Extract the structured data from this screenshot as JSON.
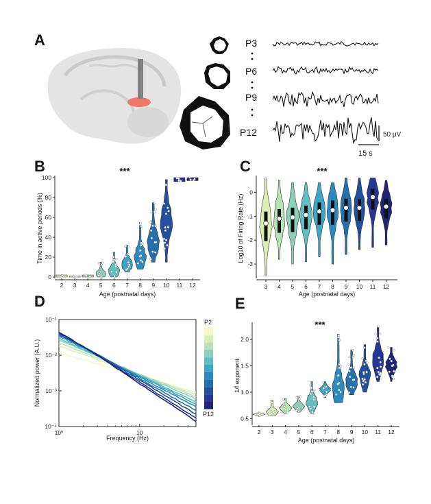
{
  "panels": {
    "a": "A",
    "b": "B",
    "c": "C",
    "d": "D",
    "e": "E"
  },
  "panel_a": {
    "trace_labels": [
      "P3",
      "P6",
      "P9",
      "P12"
    ],
    "scale_v": "50 μV",
    "scale_t": "15 s"
  },
  "colors": [
    "#f4f9c4",
    "#d9efb3",
    "#b7e2b4",
    "#8bd0ba",
    "#5fbfc1",
    "#3ea6c2",
    "#2a8abd",
    "#2470ae",
    "#23509d",
    "#253694",
    "#1d2675"
  ],
  "chart_data": [
    {
      "id": "B",
      "type": "violin",
      "xlabel": "Age (postnatal days)",
      "ylabel": "Time in active periods (%)",
      "significance": "***",
      "categories": [
        "2",
        "3",
        "4",
        "5",
        "6",
        "7",
        "8",
        "9",
        "10",
        "11",
        "12"
      ],
      "ylim": [
        0,
        100
      ],
      "yticks": [
        0,
        20,
        40,
        60,
        80,
        100
      ],
      "medians": [
        1,
        1,
        1,
        3,
        6,
        13,
        20,
        35,
        55,
        98,
        98
      ],
      "ranges": [
        [
          0,
          2
        ],
        [
          0,
          1
        ],
        [
          0,
          2
        ],
        [
          0,
          15
        ],
        [
          0,
          25
        ],
        [
          5,
          32
        ],
        [
          8,
          55
        ],
        [
          15,
          75
        ],
        [
          15,
          98
        ],
        [
          96,
          100
        ],
        [
          97,
          100
        ]
      ]
    },
    {
      "id": "C",
      "type": "violin",
      "xlabel": "Age (postnatal days)",
      "ylabel": "Log10 of Firing Rate (Hz)",
      "significance": "***",
      "categories": [
        "3",
        "4",
        "5",
        "6",
        "7",
        "8",
        "9",
        "10",
        "11",
        "12"
      ],
      "ylim": [
        -3.6,
        0.7
      ],
      "yticks": [
        -3,
        -2,
        -1,
        0
      ],
      "medians": [
        -1.3,
        -1.1,
        -1.05,
        -0.95,
        -0.8,
        -0.75,
        -0.65,
        -0.65,
        -0.2,
        -0.6
      ],
      "ranges": [
        [
          -3.5,
          0.6
        ],
        [
          -2.8,
          0.5
        ],
        [
          -3.0,
          0.4
        ],
        [
          -2.9,
          0.4
        ],
        [
          -2.7,
          0.4
        ],
        [
          -3.0,
          0.4
        ],
        [
          -2.6,
          0.6
        ],
        [
          -2.4,
          0.6
        ],
        [
          -2.3,
          0.6
        ],
        [
          -2.2,
          0.5
        ]
      ]
    },
    {
      "id": "D",
      "type": "line",
      "xlabel": "Frequency (Hz)",
      "ylabel": "Normalized power (A.U.)",
      "xscale": "log",
      "yscale": "log",
      "xlim": [
        1,
        50
      ],
      "ylim": [
        0.0001,
        0.1
      ],
      "xtick_labels": [
        "10⁰",
        "10"
      ],
      "ytick_labels": [
        "10⁻¹",
        "10⁻²",
        "10⁻³",
        "10⁻⁴"
      ],
      "colorbar_labels": [
        "P2",
        "P12"
      ],
      "series": [
        {
          "values": [
            0.012,
            0.0009
          ]
        },
        {
          "values": [
            0.018,
            0.0008
          ]
        },
        {
          "values": [
            0.022,
            0.0007
          ]
        },
        {
          "values": [
            0.027,
            0.0006
          ]
        },
        {
          "values": [
            0.03,
            0.0005
          ]
        },
        {
          "values": [
            0.034,
            0.00043
          ]
        },
        {
          "values": [
            0.038,
            0.00036
          ]
        },
        {
          "values": [
            0.043,
            0.00028
          ]
        },
        {
          "values": [
            0.047,
            0.00022
          ]
        },
        {
          "values": [
            0.05,
            0.00017
          ]
        },
        {
          "values": [
            0.052,
            0.00014
          ]
        }
      ]
    },
    {
      "id": "E",
      "type": "violin",
      "xlabel": "Age (postnatal days)",
      "ylabel": "1/f exponent",
      "significance": "***",
      "categories": [
        "2",
        "3",
        "4",
        "5",
        "6",
        "7",
        "8",
        "9",
        "10",
        "11",
        "12"
      ],
      "ylim": [
        0.4,
        2.3
      ],
      "yticks": [
        0.5,
        1.0,
        1.5,
        2.0
      ],
      "medians": [
        0.58,
        0.62,
        0.7,
        0.72,
        0.8,
        1.05,
        1.05,
        1.2,
        1.3,
        1.6,
        1.5
      ],
      "ranges": [
        [
          0.54,
          0.62
        ],
        [
          0.55,
          0.85
        ],
        [
          0.6,
          0.88
        ],
        [
          0.62,
          0.92
        ],
        [
          0.6,
          1.2
        ],
        [
          0.9,
          1.2
        ],
        [
          0.8,
          2.1
        ],
        [
          0.95,
          1.8
        ],
        [
          1.0,
          1.9
        ],
        [
          1.2,
          2.25
        ],
        [
          1.2,
          1.85
        ]
      ]
    }
  ]
}
